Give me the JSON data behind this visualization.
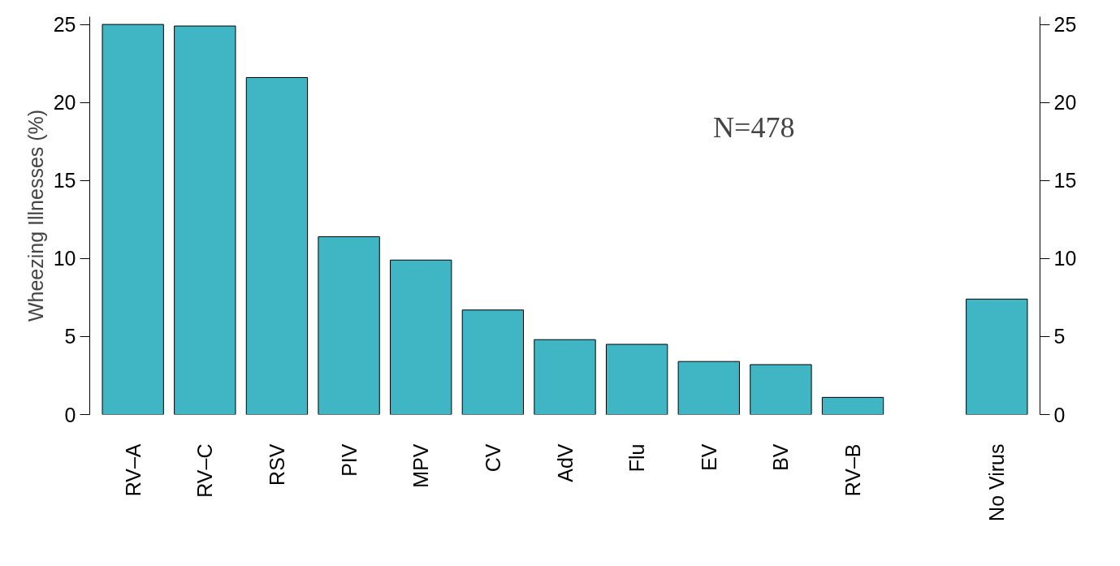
{
  "chart_data": {
    "type": "bar",
    "ylabel": "Wheezing Illnesses (%)",
    "categories": [
      "RV–A",
      "RV–C",
      "RSV",
      "PIV",
      "MPV",
      "CV",
      "AdV",
      "Flu",
      "EV",
      "BV",
      "RV–B",
      null,
      "No Virus"
    ],
    "values": [
      25.0,
      24.9,
      21.6,
      11.4,
      9.9,
      6.7,
      4.8,
      4.5,
      3.4,
      3.2,
      1.1,
      null,
      7.4
    ],
    "color": "#40b5c4",
    "ylim": [
      0,
      25.5
    ],
    "yticks": [
      0,
      5,
      10,
      15,
      20,
      25
    ],
    "y2lim": [
      0,
      25.5
    ],
    "y2ticks": [
      0,
      5,
      10,
      15,
      20,
      25
    ],
    "annotations": [
      "N=478"
    ],
    "grid": false
  }
}
